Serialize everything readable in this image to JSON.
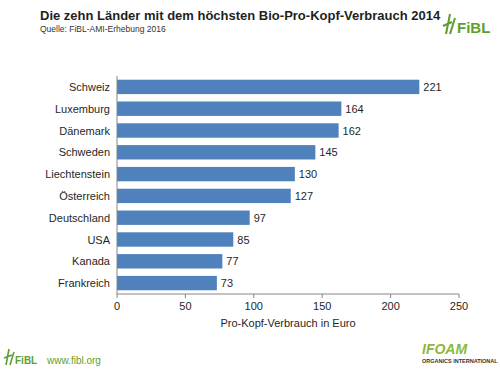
{
  "chart_data": {
    "type": "bar",
    "orientation": "horizontal",
    "title": "Die zehn Länder mit dem höchsten Bio-Pro-Kopf-Verbrauch 2014",
    "subtitle": "Quelle: FiBL-AMI-Erhebung 2016",
    "x_label": "Pro-Kopf-Verbrauch in Euro",
    "categories": [
      "Schweiz",
      "Luxemburg",
      "Dänemark",
      "Schweden",
      "Liechtenstein",
      "Österreich",
      "Deutschland",
      "USA",
      "Kanada",
      "Frankreich"
    ],
    "values": [
      221,
      164,
      162,
      145,
      130,
      127,
      97,
      85,
      77,
      73
    ],
    "color": "#4f81bd",
    "xlim": [
      0,
      250
    ],
    "xticks": [
      0,
      50,
      100,
      150,
      200,
      250
    ],
    "grid": false,
    "data_labels": true,
    "annotations": [
      "FiBL",
      "FiBL",
      "www.fibl.org",
      "IFOAM",
      "ORGANICS INTERNATIONAL"
    ]
  }
}
